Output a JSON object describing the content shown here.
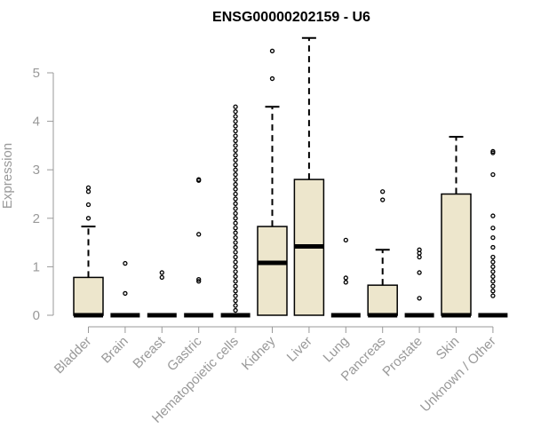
{
  "chart_data": {
    "type": "box",
    "title": "ENSG00000202159 - U6",
    "xlabel": "",
    "ylabel": "Expression",
    "ylim": [
      0,
      5.6
    ],
    "yticks": [
      0,
      1,
      2,
      3,
      4,
      5
    ],
    "grid": false,
    "colors": {
      "box_fill": "#ede6cc",
      "axis": "#999999",
      "title": "#000000"
    },
    "categories": [
      "Bladder",
      "Brain",
      "Breast",
      "Gastric",
      "Hematopoietic cells",
      "Kidney",
      "Liver",
      "Lung",
      "Pancreas",
      "Prostate",
      "Skin",
      "Unknown / Other"
    ],
    "boxes": [
      {
        "name": "Bladder",
        "q1": 0,
        "median": 0,
        "q3": 0.78,
        "whisker_low": 0,
        "whisker_high": 1.83,
        "outliers": [
          2.0,
          2.28,
          2.55,
          2.63
        ]
      },
      {
        "name": "Brain",
        "q1": 0,
        "median": 0,
        "q3": 0,
        "whisker_low": 0,
        "whisker_high": 0,
        "outliers": [
          0.45,
          1.07
        ]
      },
      {
        "name": "Breast",
        "q1": 0,
        "median": 0,
        "q3": 0,
        "whisker_low": 0,
        "whisker_high": 0,
        "outliers": [
          0.78,
          0.88
        ]
      },
      {
        "name": "Gastric",
        "q1": 0,
        "median": 0,
        "q3": 0,
        "whisker_low": 0,
        "whisker_high": 0,
        "outliers": [
          0.7,
          0.74,
          1.67,
          2.78,
          2.8
        ]
      },
      {
        "name": "Hematopoietic cells",
        "q1": 0,
        "median": 0,
        "q3": 0,
        "whisker_low": 0,
        "whisker_high": 0,
        "outliers": [
          0.1,
          0.2,
          0.3,
          0.4,
          0.5,
          0.6,
          0.7,
          0.8,
          0.9,
          1.0,
          1.1,
          1.2,
          1.3,
          1.4,
          1.5,
          1.6,
          1.7,
          1.8,
          1.9,
          2.0,
          2.1,
          2.2,
          2.3,
          2.4,
          2.5,
          2.6,
          2.7,
          2.8,
          2.9,
          3.0,
          3.1,
          3.2,
          3.3,
          3.4,
          3.5,
          3.6,
          3.7,
          3.8,
          3.9,
          4.0,
          4.1,
          4.2,
          4.3
        ]
      },
      {
        "name": "Kidney",
        "q1": 0,
        "median": 1.08,
        "q3": 1.83,
        "whisker_low": 0,
        "whisker_high": 4.3,
        "outliers": [
          4.88,
          5.45
        ]
      },
      {
        "name": "Liver",
        "q1": 0,
        "median": 1.42,
        "q3": 2.8,
        "whisker_low": 0,
        "whisker_high": 5.72,
        "outliers": []
      },
      {
        "name": "Lung",
        "q1": 0,
        "median": 0,
        "q3": 0,
        "whisker_low": 0,
        "whisker_high": 0,
        "outliers": [
          0.68,
          0.77,
          1.55
        ]
      },
      {
        "name": "Pancreas",
        "q1": 0,
        "median": 0,
        "q3": 0.62,
        "whisker_low": 0,
        "whisker_high": 1.35,
        "outliers": [
          2.38,
          2.55
        ]
      },
      {
        "name": "Prostate",
        "q1": 0,
        "median": 0,
        "q3": 0,
        "whisker_low": 0,
        "whisker_high": 0,
        "outliers": [
          0.35,
          0.88,
          1.2,
          1.28,
          1.35
        ]
      },
      {
        "name": "Skin",
        "q1": 0,
        "median": 0,
        "q3": 2.5,
        "whisker_low": 0,
        "whisker_high": 3.68,
        "outliers": []
      },
      {
        "name": "Unknown / Other",
        "q1": 0,
        "median": 0,
        "q3": 0,
        "whisker_low": 0,
        "whisker_high": 0,
        "outliers": [
          0.4,
          0.5,
          0.6,
          0.7,
          0.8,
          0.9,
          1.0,
          1.1,
          1.2,
          1.4,
          1.6,
          1.8,
          2.05,
          2.9,
          3.35,
          3.38
        ]
      }
    ]
  }
}
